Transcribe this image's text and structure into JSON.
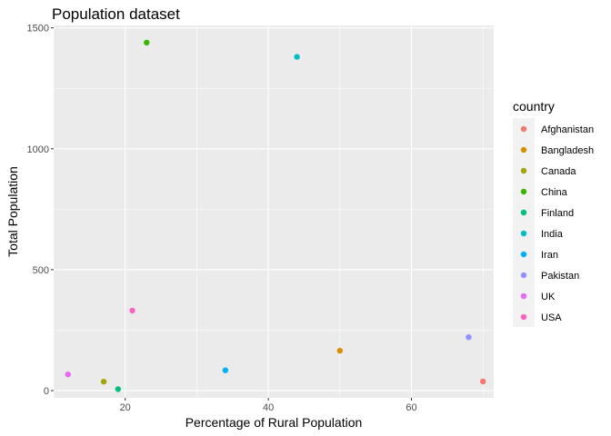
{
  "chart_data": {
    "type": "scatter",
    "title": "Population dataset",
    "xlabel": "Percentage of Rural Population",
    "ylabel": "Total Population",
    "xlim": [
      10,
      71.5
    ],
    "ylim": [
      -30,
      1510
    ],
    "x_ticks": [
      20,
      40,
      60
    ],
    "x_tick_labels": [
      "20",
      "40",
      "60"
    ],
    "y_ticks": [
      0,
      500,
      1000,
      1500
    ],
    "y_tick_labels": [
      "0",
      "500",
      "1000",
      "1500"
    ],
    "grid": true,
    "legend": {
      "title": "country",
      "position": "right"
    },
    "points": [
      {
        "country": "Afghanistan",
        "x": 70,
        "y": 38,
        "color": "#F8766D"
      },
      {
        "country": "Bangladesh",
        "x": 50,
        "y": 165,
        "color": "#D89000"
      },
      {
        "country": "Canada",
        "x": 17,
        "y": 37,
        "color": "#A3A500"
      },
      {
        "country": "China",
        "x": 23,
        "y": 1439,
        "color": "#39B600"
      },
      {
        "country": "Finland",
        "x": 19,
        "y": 6,
        "color": "#00BF7D"
      },
      {
        "country": "India",
        "x": 44,
        "y": 1380,
        "color": "#00BFC4"
      },
      {
        "country": "Iran",
        "x": 34,
        "y": 84,
        "color": "#00B0F6"
      },
      {
        "country": "Pakistan",
        "x": 68,
        "y": 221,
        "color": "#9590FF"
      },
      {
        "country": "UK",
        "x": 12,
        "y": 67,
        "color": "#E76BF3"
      },
      {
        "country": "USA",
        "x": 21,
        "y": 331,
        "color": "#FF62BC"
      }
    ]
  }
}
